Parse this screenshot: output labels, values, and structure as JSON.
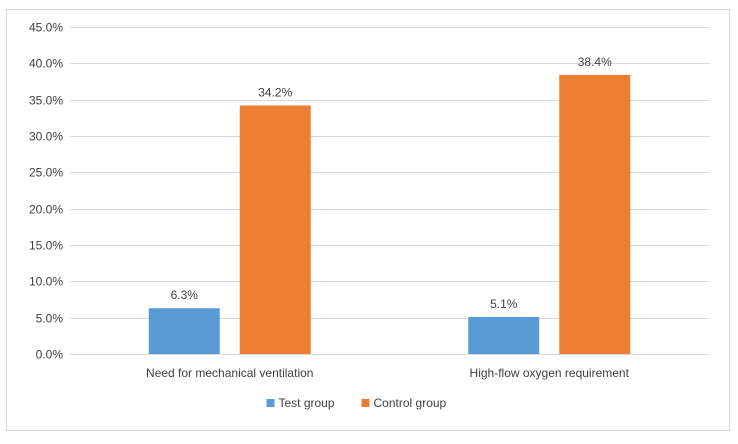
{
  "chart_data": {
    "type": "bar",
    "title": "",
    "xlabel": "",
    "ylabel": "",
    "ylim": [
      0,
      45
    ],
    "yticks": [
      0,
      5,
      10,
      15,
      20,
      25,
      30,
      35,
      40,
      45
    ],
    "ytick_labels": [
      "0.0%",
      "5.0%",
      "10.0%",
      "15.0%",
      "20.0%",
      "25.0%",
      "30.0%",
      "35.0%",
      "40.0%",
      "45.0%"
    ],
    "grid": true,
    "legend_position": "bottom",
    "categories": [
      "Need for mechanical ventilation",
      "High-flow oxygen requirement"
    ],
    "series": [
      {
        "name": "Test group",
        "color": "#5b9bd5",
        "values": [
          6.3,
          5.1
        ],
        "labels": [
          "6.3%",
          "5.1%"
        ]
      },
      {
        "name": "Control group",
        "color": "#ed7d31",
        "values": [
          34.2,
          38.4
        ],
        "labels": [
          "34.2%",
          "38.4%"
        ]
      }
    ]
  }
}
